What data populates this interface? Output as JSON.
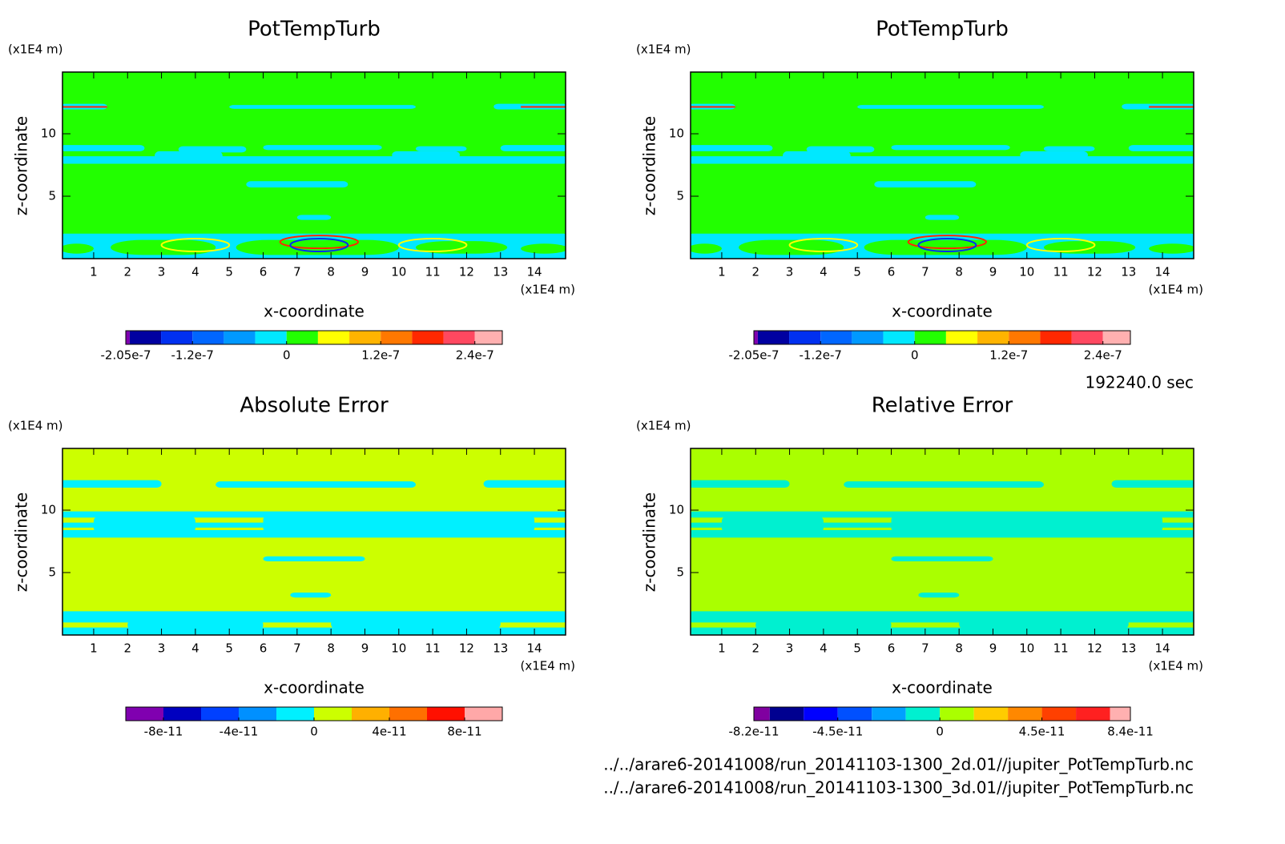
{
  "chart_data": [
    {
      "type": "contour",
      "title": "PotTempTurb",
      "x_label": "x-coordinate",
      "y_label": "z-coordinate",
      "x_unit": "(x1E4 m)",
      "y_unit": "(x1E4 m)",
      "xlim": [
        0.08,
        14.92
      ],
      "ylim": [
        0,
        14.94
      ],
      "xticks": [
        1,
        2,
        3,
        4,
        5,
        6,
        7,
        8,
        9,
        10,
        11,
        12,
        13,
        14
      ],
      "yticks": [
        5,
        10
      ],
      "colorbar": {
        "boundaries": [
          -2.05e-07,
          -2e-07,
          -1.6e-07,
          -1.2e-07,
          -8e-08,
          -4e-08,
          0,
          4e-08,
          8e-08,
          1.2e-07,
          1.6e-07,
          2e-07,
          2.4e-07,
          2.75e-07
        ],
        "colors": [
          "#8000b0",
          "#0000a0",
          "#0030f0",
          "#0066ff",
          "#0099ff",
          "#00e8ff",
          "#22ff00",
          "#ffff00",
          "#ffb400",
          "#ff7800",
          "#ff2800",
          "#ff4860",
          "#ffb0b0"
        ],
        "ticks": [
          -2.05e-07,
          -1.2e-07,
          0,
          1.2e-07,
          2.4e-07
        ]
      }
    },
    {
      "type": "contour",
      "title": "PotTempTurb",
      "x_label": "x-coordinate",
      "y_label": "z-coordinate",
      "x_unit": "(x1E4 m)",
      "y_unit": "(x1E4 m)",
      "xlim": [
        0.08,
        14.92
      ],
      "ylim": [
        0,
        14.94
      ],
      "xticks": [
        1,
        2,
        3,
        4,
        5,
        6,
        7,
        8,
        9,
        10,
        11,
        12,
        13,
        14
      ],
      "yticks": [
        5,
        10
      ],
      "colorbar": {
        "boundaries": [
          -2.05e-07,
          -2e-07,
          -1.6e-07,
          -1.2e-07,
          -8e-08,
          -4e-08,
          0,
          4e-08,
          8e-08,
          1.2e-07,
          1.6e-07,
          2e-07,
          2.4e-07,
          2.75e-07
        ],
        "colors": [
          "#8000b0",
          "#0000a0",
          "#0030f0",
          "#0066ff",
          "#0099ff",
          "#00e8ff",
          "#22ff00",
          "#ffff00",
          "#ffb400",
          "#ff7800",
          "#ff2800",
          "#ff4860",
          "#ffb0b0"
        ],
        "ticks": [
          -2.05e-07,
          -1.2e-07,
          0,
          1.2e-07,
          2.4e-07
        ]
      }
    },
    {
      "type": "contour",
      "title": "Absolute Error",
      "x_label": "x-coordinate",
      "y_label": "z-coordinate",
      "x_unit": "(x1E4 m)",
      "y_unit": "(x1E4 m)",
      "xlim": [
        0.08,
        14.92
      ],
      "ylim": [
        0,
        14.94
      ],
      "xticks": [
        1,
        2,
        3,
        4,
        5,
        6,
        7,
        8,
        9,
        10,
        11,
        12,
        13,
        14
      ],
      "yticks": [
        5,
        10
      ],
      "colorbar": {
        "boundaries": [
          -1e-10,
          -8e-11,
          -6e-11,
          -4e-11,
          -2e-11,
          0,
          2e-11,
          4e-11,
          6e-11,
          8e-11,
          1e-10
        ],
        "colors": [
          "#8000b0",
          "#0000c0",
          "#0040ff",
          "#0090ff",
          "#00f0ff",
          "#ccff00",
          "#ffb000",
          "#ff7000",
          "#ff1000",
          "#ffa8a8"
        ],
        "ticks": [
          -8e-11,
          -4e-11,
          0,
          4e-11,
          8e-11
        ]
      }
    },
    {
      "type": "contour",
      "title": "Relative Error",
      "x_label": "x-coordinate",
      "y_label": "z-coordinate",
      "x_unit": "(x1E4 m)",
      "y_unit": "(x1E4 m)",
      "xlim": [
        0.08,
        14.92
      ],
      "ylim": [
        0,
        14.94
      ],
      "xticks": [
        1,
        2,
        3,
        4,
        5,
        6,
        7,
        8,
        9,
        10,
        11,
        12,
        13,
        14
      ],
      "yticks": [
        5,
        10
      ],
      "colorbar": {
        "boundaries": [
          -8.2e-11,
          -7.5e-11,
          -6e-11,
          -4.5e-11,
          -3e-11,
          -1.5e-11,
          0,
          1.5e-11,
          3e-11,
          4.5e-11,
          6e-11,
          7.5e-11,
          8.4e-11
        ],
        "colors": [
          "#8000a0",
          "#000090",
          "#0000ff",
          "#0050ff",
          "#00a0ff",
          "#00f0d0",
          "#aaff00",
          "#ffcc00",
          "#ff8800",
          "#ff4000",
          "#ff2020",
          "#ffb0b0"
        ],
        "ticks": [
          -8.2e-11,
          -4.5e-11,
          0,
          4.5e-11,
          8.4e-11
        ]
      }
    }
  ],
  "annotations": {
    "time": "192240.0 sec",
    "files": [
      "../../arare6-20141008/run_20141103-1300_2d.01//jupiter_PotTempTurb.nc",
      "../../arare6-20141008/run_20141103-1300_3d.01//jupiter_PotTempTurb.nc"
    ]
  }
}
